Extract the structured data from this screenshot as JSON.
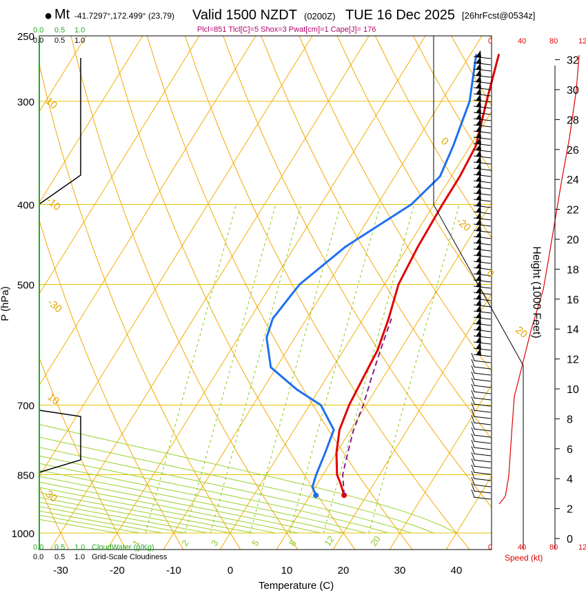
{
  "header": {
    "station_label": "Mt",
    "coords": "-41.7297°,172.499° (23,79)",
    "valid": "Valid 1500 NZDT",
    "zulu": "(0200Z)",
    "date": "TUE 16 Dec 2025",
    "forecast": "[26hrFcst@0534z]",
    "indices": "Plcl=851 Tlcl[C]=5 Shox=3 Pwat[cm]=1 Cape[J]= 176"
  },
  "axes": {
    "xlabel": "Temperature (C)",
    "ylabel": "P (hPa)",
    "height_label": "Height (1000 Feet)",
    "speed_label": "Speed (kt)"
  },
  "cloud_scale": {
    "top_green": [
      "0.0",
      "0.5",
      "1.0"
    ],
    "top_black": [
      "0.0",
      "0.5",
      "1.0"
    ],
    "bottom_green": [
      "0.0",
      "0.5",
      "1.0"
    ],
    "bottom_black": [
      "0.0",
      "0.5",
      "1.0"
    ],
    "cloudwater_label": "CloudWater (g/Kg)",
    "cloudiness_label": "Grid-Scale Cloudiness"
  },
  "speed_ticks": [
    "0",
    "40",
    "80",
    "12"
  ],
  "mixing_ratio_labels": [
    "1",
    "2",
    "3",
    "5",
    "8",
    "12",
    "20"
  ],
  "isotherm_labels": [
    "10",
    "0",
    "-10",
    "-20",
    "-30",
    "0",
    "10",
    "20",
    "30"
  ],
  "chart_data": {
    "type": "line",
    "title": "Valid 1500 NZDT (0200Z) TUE 16 Dec 2025",
    "xlabel": "Temperature (C)",
    "ylabel": "P (hPa)",
    "x_ticks": [
      -30,
      -20,
      -10,
      0,
      10,
      20,
      30,
      40
    ],
    "p_ticks": [
      250,
      300,
      400,
      500,
      700,
      850,
      1000
    ],
    "height_ticks": [
      0,
      2,
      4,
      6,
      8,
      10,
      12,
      14,
      16,
      18,
      20,
      22,
      24,
      26,
      28,
      30,
      32
    ],
    "x_range": [
      -33,
      47
    ],
    "p_range": [
      250,
      1000
    ],
    "series": [
      {
        "name": "Temperature",
        "color": "#e00000",
        "pres": [
          263,
          300,
          340,
          370,
          400,
          450,
          500,
          550,
          600,
          650,
          700,
          750,
          800,
          850,
          870,
          900
        ],
        "temp": [
          -5,
          -2,
          1,
          1.5,
          1.5,
          1.8,
          2.5,
          4.5,
          6,
          6.5,
          7,
          8,
          10,
          12.5,
          14,
          16
        ]
      },
      {
        "name": "Dew point",
        "color": "#1e6ff0",
        "pres": [
          263,
          300,
          340,
          370,
          400,
          450,
          500,
          550,
          580,
          630,
          670,
          700,
          750,
          800,
          850,
          880,
          900
        ],
        "temp": [
          -9,
          -5,
          -3,
          -2,
          -4,
          -11,
          -15,
          -16,
          -15,
          -11,
          -4,
          2,
          7,
          8,
          8.8,
          9.5,
          11
        ]
      },
      {
        "name": "Parcel",
        "color": "#8a1a8a",
        "pres": [
          900,
          850,
          800,
          750,
          700,
          650,
          600,
          550
        ],
        "temp": [
          16,
          13.5,
          12,
          10.5,
          9.5,
          8,
          6.5,
          5
        ]
      }
    ],
    "lcl_pressure": 851,
    "wind_speed_profile": {
      "color": "#e00000",
      "note": "speed (kt) vs height"
    }
  }
}
